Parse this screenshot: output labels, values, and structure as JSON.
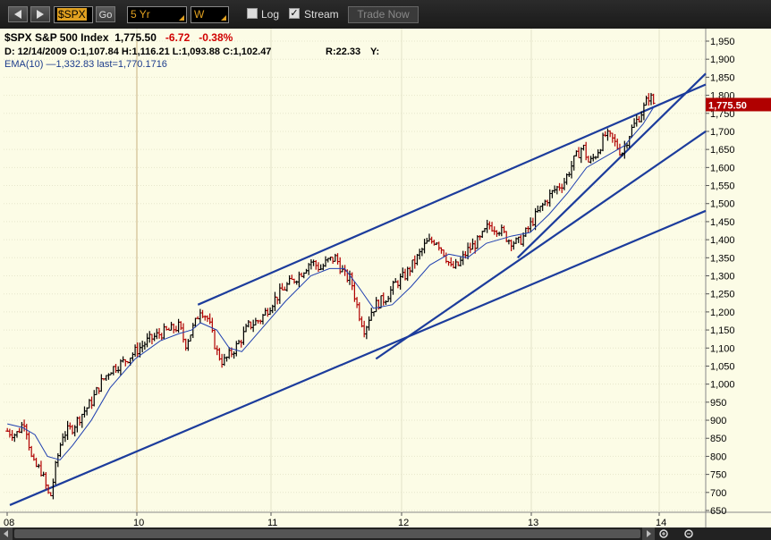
{
  "toolbar": {
    "back_icon": "triangle-left-icon",
    "forward_icon": "triangle-right-icon",
    "symbol": "$SPX",
    "go_label": "Go",
    "period": "5 Yr",
    "interval": "W",
    "log_label": "Log",
    "log_checked": false,
    "stream_label": "Stream",
    "stream_checked": true,
    "trade_label": "Trade Now"
  },
  "quote": {
    "name": "$SPX S&P 500 Index",
    "last": "1,775.50",
    "change": "-6.72",
    "change_pct": "-0.38%",
    "ohlc_line": "D: 12/14/2009 O:1,107.84 H:1,116.21 L:1,093.88 C:1,102.47",
    "range": "R:22.33",
    "y_label": "Y:",
    "ema_label": "EMA(10) —1,332.83 last=1,770.1716",
    "price_tag": "1,775.50"
  },
  "colors": {
    "background": "#fcfce6",
    "up_bar": "#000000",
    "down_bar": "#b00000",
    "trendline": "#1c3c9c",
    "ema": "#2040b0",
    "price_tag": "#b00000"
  },
  "chart_data": {
    "type": "line",
    "title": "$SPX S&P 500 Index",
    "x_ticks": [
      "08",
      "10",
      "11",
      "12",
      "13",
      "14"
    ],
    "y_ticks": [
      "650",
      "700",
      "750",
      "800",
      "850",
      "900",
      "950",
      "1,000",
      "1,050",
      "1,100",
      "1,150",
      "1,200",
      "1,250",
      "1,300",
      "1,350",
      "1,400",
      "1,450",
      "1,500",
      "1,550",
      "1,600",
      "1,650",
      "1,700",
      "1,750",
      "1,800",
      "1,850",
      "1,900",
      "1,950"
    ],
    "ylim": [
      650,
      1950
    ],
    "xlim": [
      2008.75,
      2014.35
    ],
    "grid": true,
    "series": [
      {
        "x": [
          2008.78,
          2008.85,
          2008.92,
          2008.98,
          2009.05,
          2009.12,
          2009.17,
          2009.22,
          2009.3,
          2009.38,
          2009.45,
          2009.52,
          2009.6,
          2009.7,
          2009.8,
          2009.9,
          2010.0,
          2010.08,
          2010.15,
          2010.2,
          2010.28,
          2010.32,
          2010.38,
          2010.45,
          2010.5,
          2010.55,
          2010.62,
          2010.7,
          2010.8,
          2010.9,
          2011.0,
          2011.1,
          2011.2,
          2011.28,
          2011.33,
          2011.4,
          2011.47,
          2011.52,
          2011.58,
          2011.63,
          2011.68,
          2011.72,
          2011.8,
          2011.88,
          2011.95,
          2012.05,
          2012.12,
          2012.2,
          2012.27,
          2012.32,
          2012.38,
          2012.45,
          2012.55,
          2012.62,
          2012.7,
          2012.78,
          2012.85,
          2012.9,
          2013.0,
          2013.08,
          2013.15,
          2013.22,
          2013.3,
          2013.37,
          2013.42,
          2013.48,
          2013.55,
          2013.6,
          2013.68,
          2013.75,
          2013.8,
          2013.85,
          2013.9,
          2013.94
        ],
        "values": [
          870,
          860,
          900,
          780,
          760,
          680,
          780,
          860,
          880,
          920,
          950,
          1000,
          1040,
          1060,
          1090,
          1120,
          1140,
          1150,
          1160,
          1110,
          1170,
          1210,
          1180,
          1090,
          1060,
          1080,
          1110,
          1160,
          1180,
          1230,
          1270,
          1300,
          1340,
          1320,
          1340,
          1350,
          1300,
          1290,
          1200,
          1150,
          1200,
          1220,
          1240,
          1280,
          1300,
          1350,
          1390,
          1400,
          1360,
          1320,
          1330,
          1370,
          1400,
          1440,
          1430,
          1400,
          1390,
          1410,
          1470,
          1510,
          1540,
          1560,
          1620,
          1660,
          1610,
          1640,
          1690,
          1680,
          1640,
          1700,
          1730,
          1760,
          1800,
          1775.5
        ]
      },
      {
        "name": "EMA(10)",
        "x": [
          2008.78,
          2008.9,
          2009.0,
          2009.1,
          2009.2,
          2009.3,
          2009.45,
          2009.6,
          2009.8,
          2010.0,
          2010.15,
          2010.25,
          2010.32,
          2010.45,
          2010.55,
          2010.65,
          2010.8,
          2011.0,
          2011.2,
          2011.35,
          2011.47,
          2011.58,
          2011.7,
          2011.85,
          2012.0,
          2012.15,
          2012.3,
          2012.45,
          2012.6,
          2012.8,
          2012.95,
          2013.1,
          2013.25,
          2013.4,
          2013.55,
          2013.7,
          2013.85,
          2013.94
        ],
        "values": [
          890,
          880,
          860,
          800,
          790,
          830,
          900,
          990,
          1070,
          1120,
          1140,
          1150,
          1170,
          1150,
          1100,
          1090,
          1150,
          1230,
          1300,
          1320,
          1320,
          1270,
          1210,
          1220,
          1270,
          1330,
          1360,
          1350,
          1390,
          1410,
          1420,
          1470,
          1530,
          1600,
          1630,
          1660,
          1720,
          1770
        ]
      }
    ],
    "trendlines": [
      {
        "x": [
          2008.8,
          2014.35
        ],
        "values": [
          665,
          1480
        ]
      },
      {
        "x": [
          2010.3,
          2014.35
        ],
        "values": [
          1220,
          1830
        ]
      },
      {
        "x": [
          2011.72,
          2014.35
        ],
        "values": [
          1070,
          1700
        ]
      },
      {
        "x": [
          2012.85,
          2014.35
        ],
        "values": [
          1350,
          1860
        ]
      }
    ]
  }
}
